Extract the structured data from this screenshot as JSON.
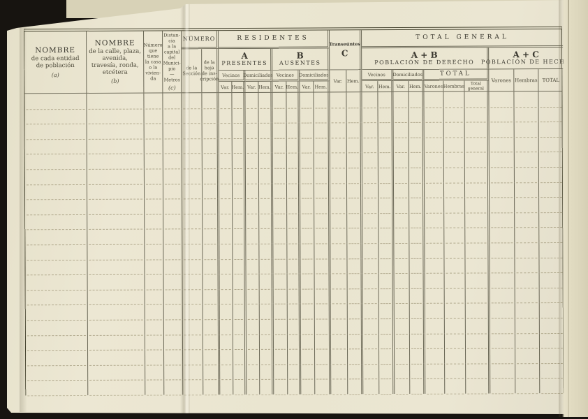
{
  "labels": {
    "var": "Var.",
    "hem": "Hem.",
    "vecinos": "Vecinos",
    "domiciliados": "Domiciliados"
  },
  "header": {
    "entidad": {
      "title": "NOMBRE",
      "line1": "de cada entidad",
      "line2": "de población",
      "note": "(a)"
    },
    "calle": {
      "title": "NOMBRE",
      "line1": "de la calle, plaza,",
      "line2": "avenida,",
      "line3": "travesía, ronda,",
      "line4": "etcétera",
      "note": "(b)"
    },
    "casa": {
      "l1": "Número",
      "l2": "que",
      "l3": "tiene",
      "l4": "la casa",
      "l5": "o la",
      "l6": "vivien-",
      "l7": "da"
    },
    "distancia": {
      "l1": "Distan-",
      "l2": "cia",
      "l3": "a la",
      "l4": "capital",
      "l5": "del",
      "l6": "Munici-",
      "l7": "pio",
      "l8": "—",
      "l9": "Metros",
      "note": "(c)"
    },
    "numero": {
      "title": "NÚMERO",
      "seccion_l1": "de la",
      "seccion_l2": "Sección",
      "hoja_l1": "de la",
      "hoja_l2": "hoja",
      "hoja_l3": "de ins-",
      "hoja_l4": "cripción"
    },
    "residentes": {
      "title": "RESIDENTES",
      "a_letter": "A",
      "a_label": "PRESENTES",
      "b_letter": "B",
      "b_label": "AUSENTES"
    },
    "transeuntes": {
      "title": "Transeúntes",
      "letter": "C"
    },
    "total_general": {
      "title": "TOTAL GENERAL",
      "ab_letter": "A + B",
      "ab_label": "POBLACIÓN DE DERECHO",
      "total": "TOTAL",
      "varones": "Varones",
      "hembras": "Hembras",
      "total_l1": "Total",
      "total_l2": "general",
      "ac_letter": "A + C",
      "ac_label": "POBLACIÓN DE HECHO",
      "ac_varones": "Varones",
      "ac_hembras": "Hembras",
      "ac_total": "TOTAL"
    }
  },
  "body": {
    "row_count": 20,
    "column_count": 26
  }
}
